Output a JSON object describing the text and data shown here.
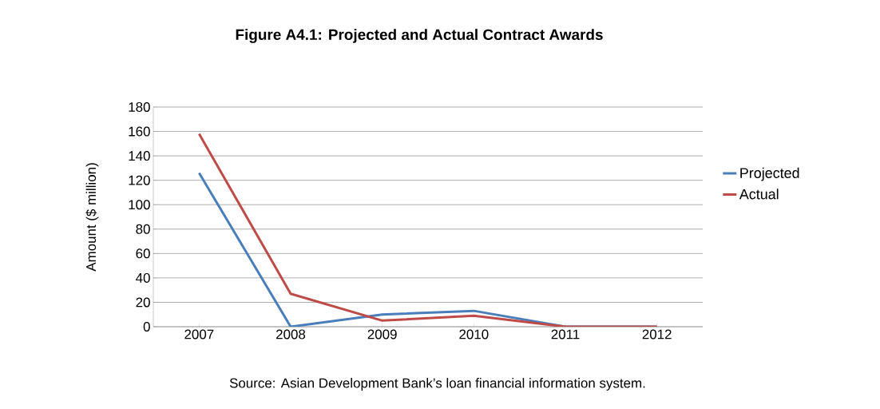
{
  "chart_data": {
    "type": "line",
    "title": "Figure A4.1: Projected and Actual Contract Awards",
    "ylabel": "Amount ($ million)",
    "categories": [
      "2007",
      "2008",
      "2009",
      "2010",
      "2011",
      "2012"
    ],
    "series": [
      {
        "name": "Projected",
        "color": "#4a7ebb",
        "values": [
          126,
          0,
          10,
          13,
          0,
          0
        ]
      },
      {
        "name": "Actual",
        "color": "#be4b48",
        "values": [
          158,
          27,
          5,
          9,
          0,
          0
        ]
      }
    ],
    "ylim": [
      0,
      180
    ],
    "yticks": [
      0,
      20,
      40,
      60,
      80,
      100,
      120,
      140,
      160,
      180
    ],
    "grid": "y",
    "legend": "right",
    "marker": "none",
    "line_style": "solid",
    "annotations": [
      "Source: Asian Development Bank’s loan financial information system."
    ]
  }
}
